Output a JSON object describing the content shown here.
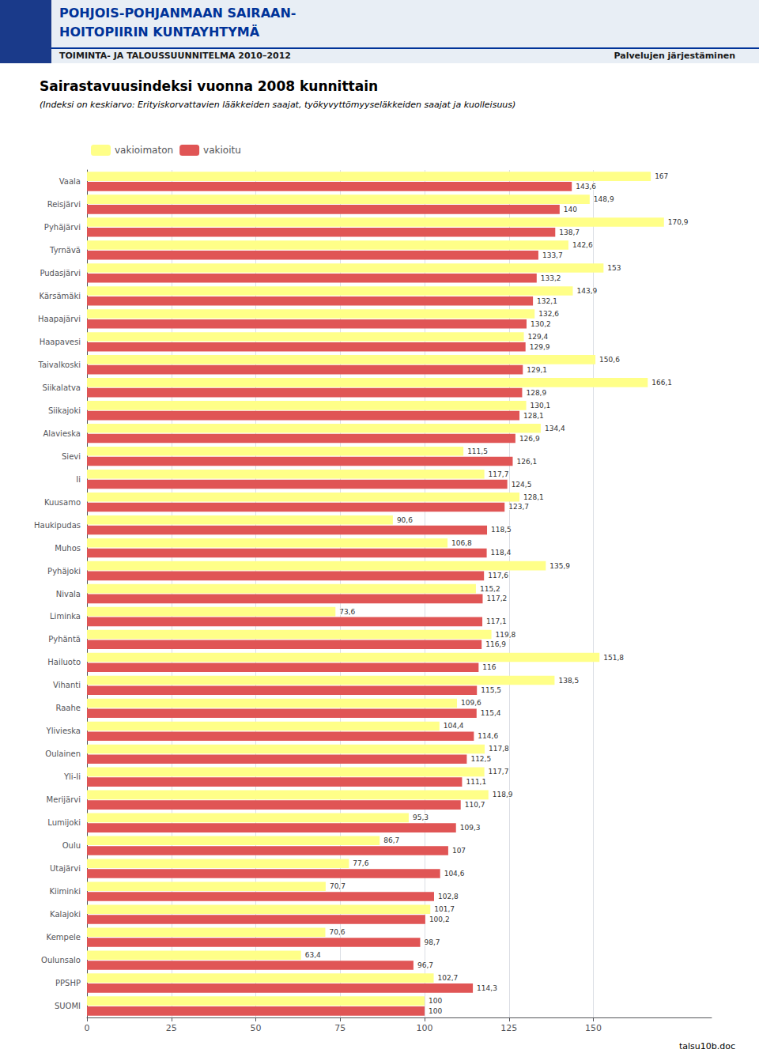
{
  "chart_data": {
    "type": "bar",
    "orientation": "horizontal",
    "title": "Sairastavuusindeksi vuonna 2008 kunnittain",
    "subtitle": "(Indeksi on keskiarvo: Erityiskorvattavien lääkkeiden saajat, työkyvyttömyyseläkkeiden saajat ja kuolleisuus)",
    "annotations": [
      "POHJOIS-POHJANMAAN SAIRAAN-",
      "HOITOPIIRIN KUNTAYHTYMÄ",
      "TOIMINTA- JA TALOUSSUUNNITELMA 2010–2012",
      "Palvelujen järjestäminen",
      "talsu10b.doc"
    ],
    "categories": [
      "Vaala",
      "Reisjärvi",
      "Pyhäjärvi",
      "Tyrnävä",
      "Pudasjärvi",
      "Kärsämäki",
      "Haapajärvi",
      "Haapavesi",
      "Taivalkoski",
      "Siikalatva",
      "Siikajoki",
      "Alavieska",
      "Sievi",
      "Ii",
      "Kuusamo",
      "Haukipudas",
      "Muhos",
      "Pyhäjoki",
      "Nivala",
      "Liminka",
      "Pyhäntä",
      "Hailuoto",
      "Vihanti",
      "Raahe",
      "Ylivieska",
      "Oulainen",
      "Yli-Ii",
      "Merijärvi",
      "Lumijoki",
      "Oulu",
      "Utajärvi",
      "Kiiminki",
      "Kalajoki",
      "Kempele",
      "Oulunsalo",
      "PPSHP",
      "SUOMI"
    ],
    "series": [
      {
        "name": "vakioimaton",
        "color": "#FFFF88",
        "values": [
          167,
          148.9,
          170.9,
          142.6,
          153,
          143.9,
          132.6,
          129.4,
          150.6,
          166.1,
          130.1,
          134.4,
          111.5,
          117.7,
          128.1,
          90.6,
          106.8,
          135.9,
          115.2,
          73.6,
          119.8,
          151.8,
          138.5,
          109.6,
          104.4,
          117.8,
          117.7,
          118.9,
          95.3,
          86.7,
          77.6,
          70.7,
          101.7,
          70.6,
          63.4,
          102.7,
          100
        ],
        "value_labels": [
          "167",
          "148,9",
          "170,9",
          "142,6",
          "153",
          "143,9",
          "132,6",
          "129,4",
          "150,6",
          "166,1",
          "130,1",
          "134,4",
          "111,5",
          "117,7",
          "128,1",
          "90,6",
          "106,8",
          "135,9",
          "115,2",
          "73,6",
          "119,8",
          "151,8",
          "138,5",
          "109,6",
          "104,4",
          "117,8",
          "117,7",
          "118,9",
          "95,3",
          "86,7",
          "77,6",
          "70,7",
          "101,7",
          "70,6",
          "63,4",
          "102,7",
          "100"
        ]
      },
      {
        "name": "vakioitu",
        "color": "#E05555",
        "values": [
          143.6,
          140,
          138.7,
          133.7,
          133.2,
          132.1,
          130.2,
          129.9,
          129.1,
          128.9,
          128.1,
          126.9,
          126.1,
          124.5,
          123.7,
          118.5,
          118.4,
          117.6,
          117.2,
          117.1,
          116.9,
          116,
          115.5,
          115.4,
          114.6,
          112.5,
          111.1,
          110.7,
          109.3,
          107,
          104.6,
          102.8,
          100.2,
          98.7,
          96.7,
          114.3,
          100
        ],
        "value_labels": [
          "143,6",
          "140",
          "138,7",
          "133,7",
          "133,2",
          "132,1",
          "130,2",
          "129,9",
          "129,1",
          "128,9",
          "128,1",
          "126,9",
          "126,1",
          "124,5",
          "123,7",
          "118,5",
          "118,4",
          "117,6",
          "117,2",
          "117,1",
          "116,9",
          "116",
          "115,5",
          "115,4",
          "114,6",
          "112,5",
          "111,1",
          "110,7",
          "109,3",
          "107",
          "104,6",
          "102,8",
          "100,2",
          "98,7",
          "96,7",
          "114,3",
          "100"
        ]
      }
    ],
    "xlim": [
      0,
      185
    ],
    "xticks": [
      0,
      25,
      50,
      75,
      100,
      125,
      150
    ],
    "grid": true,
    "data_labels": true,
    "legend": "upper left"
  }
}
